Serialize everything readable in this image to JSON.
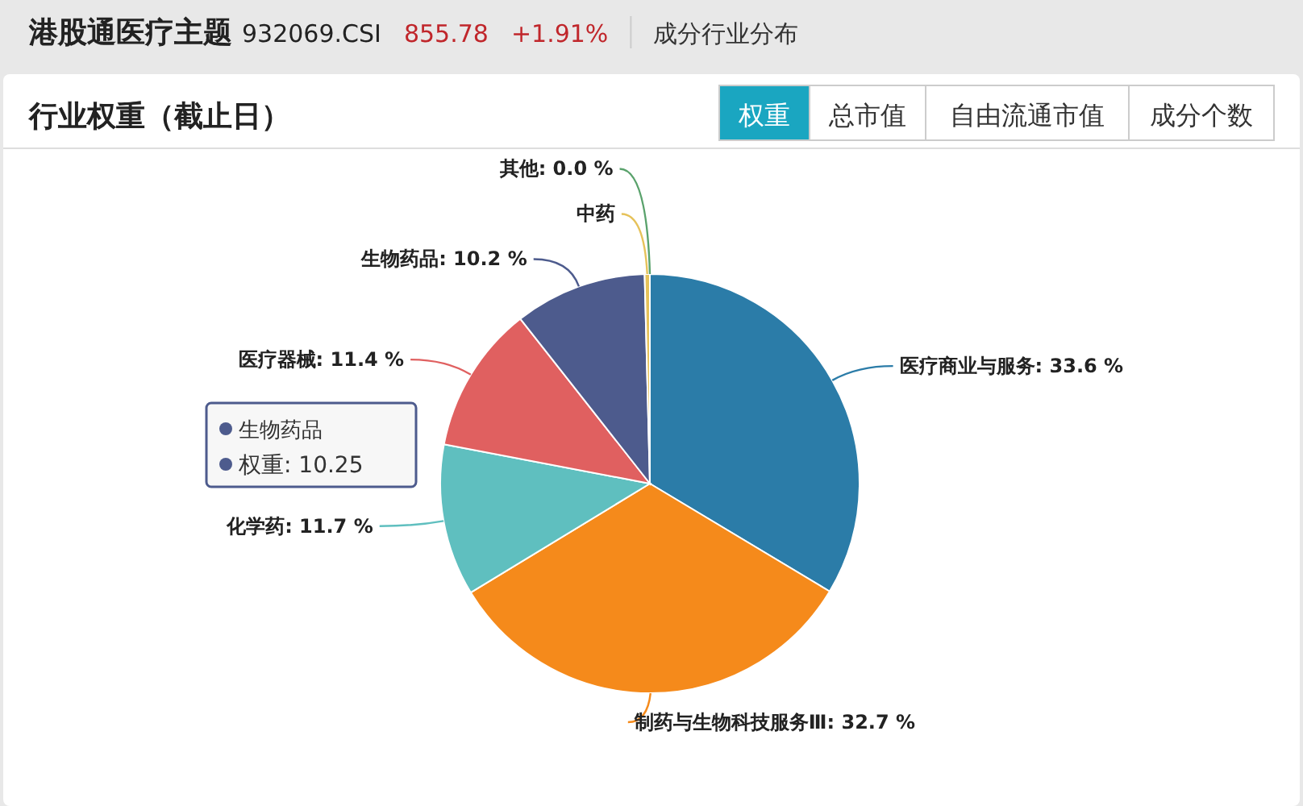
{
  "chart_data": {
    "type": "pie",
    "title": "港股通医疗主题",
    "subtitle": "行业权重（截止日）",
    "categories": [
      "医疗商业与服务",
      "制药与生物科技服务Ⅲ",
      "化学药",
      "医疗器械",
      "生物药品",
      "中药",
      "其他"
    ],
    "values": [
      33.6,
      32.7,
      11.7,
      11.4,
      10.2,
      0.4,
      0.0
    ],
    "value_labels": [
      ": 33.6 %",
      ": 32.7 %",
      ": 11.7 %",
      ": 11.4 %",
      ": 10.2 %",
      null,
      ": 0.0 %"
    ],
    "colors": [
      "#2b7ca8",
      "#f58a1b",
      "#5fbfbf",
      "#e06060",
      "#4d5b8d",
      "#e6c25a",
      "#5aa26c"
    ],
    "annotations": [
      "932069.CSI",
      "855.78",
      "+1.91%",
      "成分行业分布",
      "权重",
      "总市值",
      "自由流通市值",
      "成分个数",
      "生物药品",
      "权重: 10.25"
    ]
  }
}
